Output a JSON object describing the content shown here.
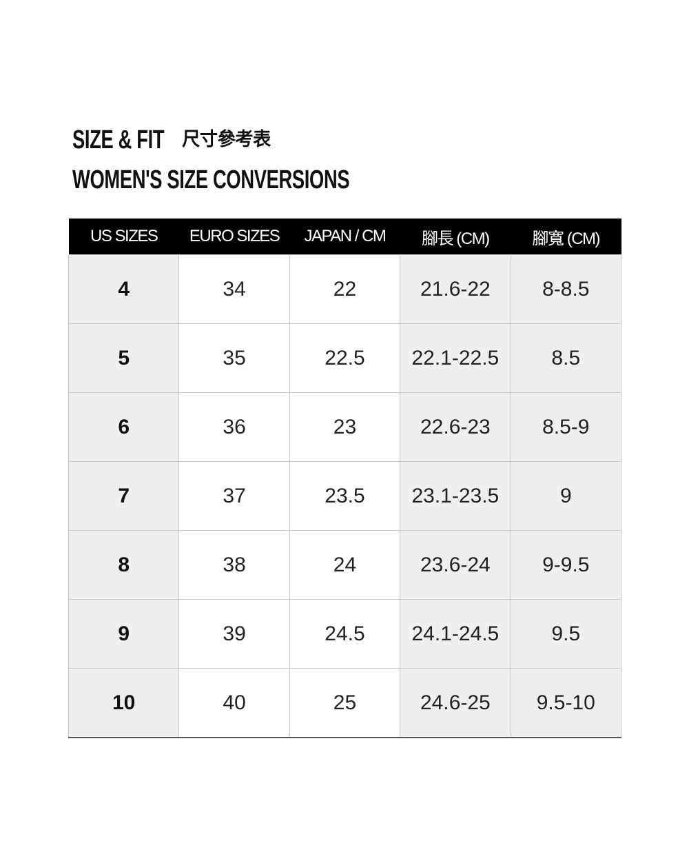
{
  "heading": {
    "title": "SIZE & FIT",
    "title_zh": "尺寸參考表",
    "subtitle": "WOMEN'S SIZE CONVERSIONS"
  },
  "table": {
    "headers": [
      "US SIZES",
      "EURO SIZES",
      "JAPAN / CM",
      "腳長 (CM)",
      "腳寬 (CM)"
    ],
    "rows": [
      [
        "4",
        "34",
        "22",
        "21.6-22",
        "8-8.5"
      ],
      [
        "5",
        "35",
        "22.5",
        "22.1-22.5",
        "8.5"
      ],
      [
        "6",
        "36",
        "23",
        "22.6-23",
        "8.5-9"
      ],
      [
        "7",
        "37",
        "23.5",
        "23.1-23.5",
        "9"
      ],
      [
        "8",
        "38",
        "24",
        "23.6-24",
        "9-9.5"
      ],
      [
        "9",
        "39",
        "24.5",
        "24.1-24.5",
        "9.5"
      ],
      [
        "10",
        "40",
        "25",
        "24.6-25",
        "9.5-10"
      ]
    ]
  }
}
